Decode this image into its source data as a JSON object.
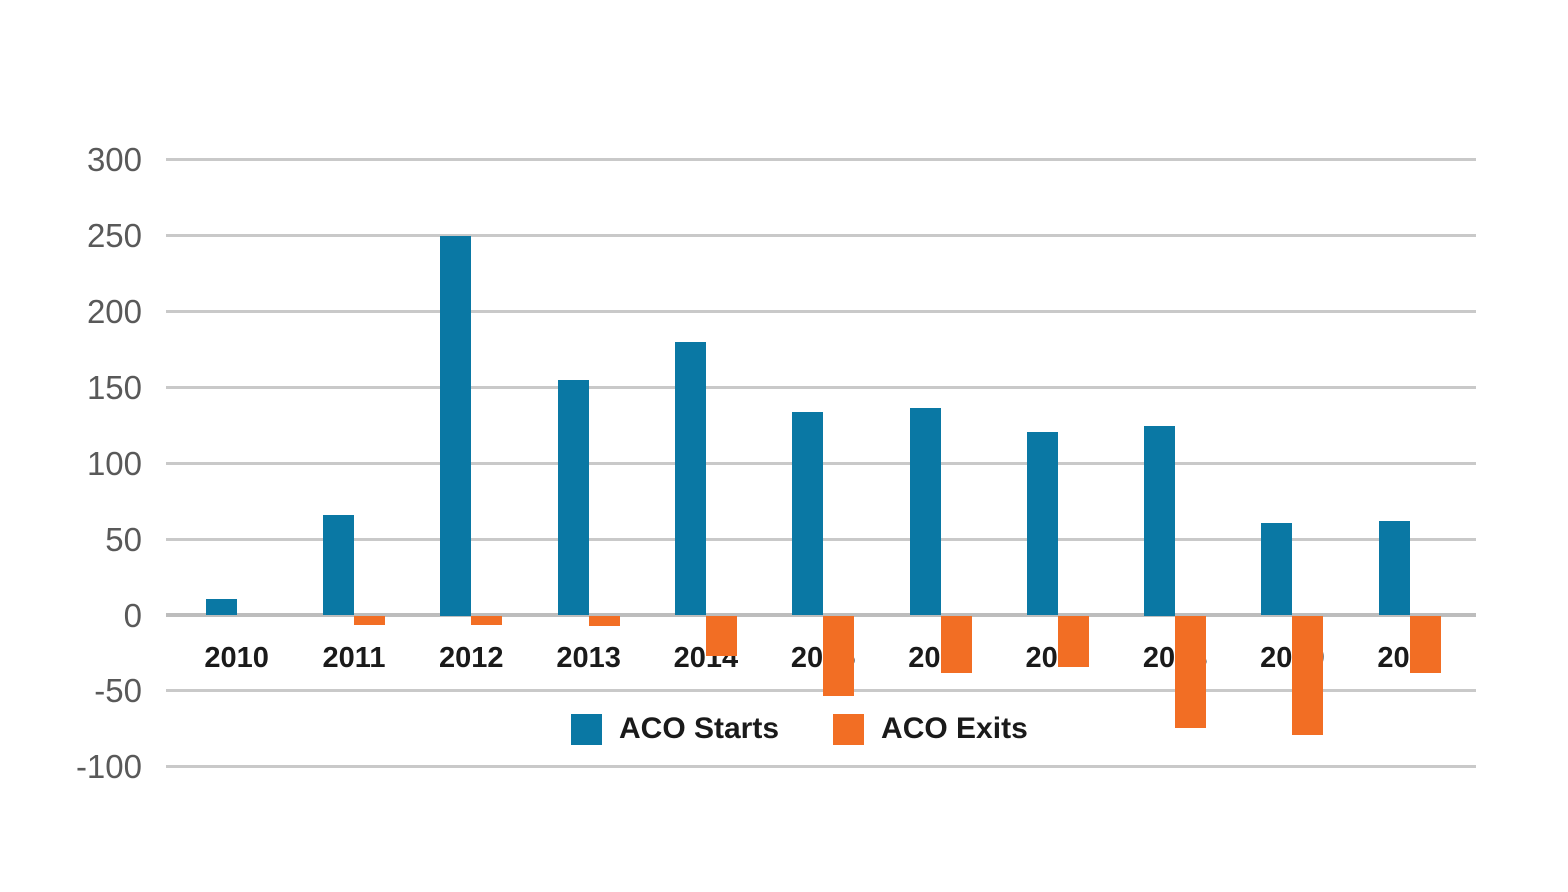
{
  "figure": {
    "background": "#ffffff"
  },
  "legend": {
    "items": [
      {
        "label": "ACO Starts",
        "color": "#0a78a4"
      },
      {
        "label": "ACO Exits",
        "color": "#f26e24"
      }
    ]
  },
  "chart_data": {
    "type": "bar",
    "categories": [
      "2010",
      "2011",
      "2012",
      "2013",
      "2014",
      "2015",
      "2016",
      "2017",
      "2018",
      "2019",
      "2020"
    ],
    "series": [
      {
        "name": "ACO Starts",
        "color": "#0a78a4",
        "values": [
          11,
          66,
          250,
          155,
          180,
          134,
          137,
          121,
          125,
          61,
          62
        ]
      },
      {
        "name": "ACO Exits",
        "color": "#f26e24",
        "values": [
          0,
          -6,
          -6,
          -7,
          -27,
          -53,
          -38,
          -34,
          -74,
          -79,
          -38
        ]
      }
    ],
    "title": "",
    "xlabel": "",
    "ylabel": "",
    "yticks": [
      300,
      250,
      200,
      150,
      100,
      50,
      0,
      -50,
      -100
    ],
    "ylim": [
      -100,
      300
    ],
    "grid": true,
    "legend_position": "inside-bottom-center",
    "axis_text_color": "#595959",
    "category_text_color": "#1a1a1a",
    "gridline_color": "#c9c9c9",
    "zero_line_color": "#bdbdbd"
  }
}
